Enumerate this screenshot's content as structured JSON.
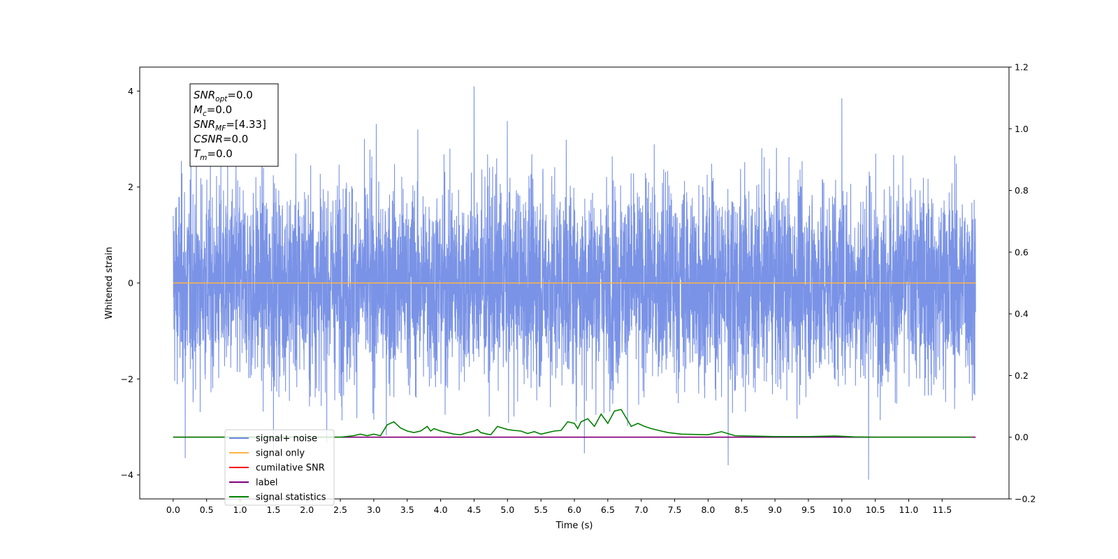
{
  "chart_data": {
    "type": "line",
    "title": "",
    "xlabel": "Time (s)",
    "ylabel": "Whitened strain",
    "xlim": [
      -0.5,
      12.5
    ],
    "ylim": [
      -4.5,
      4.5
    ],
    "y2lim": [
      -0.2,
      1.2
    ],
    "x_ticks": [
      "0.0",
      "0.5",
      "1.0",
      "1.5",
      "2.0",
      "2.5",
      "3.0",
      "3.5",
      "4.0",
      "4.5",
      "5.0",
      "5.5",
      "6.0",
      "6.5",
      "7.0",
      "7.5",
      "8.0",
      "8.5",
      "9.0",
      "9.5",
      "10.0",
      "10.5",
      "11.0",
      "11.5"
    ],
    "y_ticks": [
      "4",
      "2",
      "0",
      "−2",
      "−4"
    ],
    "y2_ticks": [
      "1.2",
      "1.0",
      "0.8",
      "0.6",
      "0.4",
      "0.2",
      "0.0",
      "−0.2"
    ],
    "grid": false,
    "legend_location": "lower-left",
    "stats_box": {
      "lines": [
        {
          "base": "SNR",
          "sub": "opt",
          "value": "=0.0"
        },
        {
          "base": "M",
          "sub": "c",
          "value": "=0.0"
        },
        {
          "base": "SNR",
          "sub": "MF",
          "value": "=[4.33]"
        },
        {
          "base": "CSNR",
          "sub": "",
          "value": "=0.0"
        },
        {
          "base": "T",
          "sub": "m",
          "value": "=0.0"
        }
      ]
    },
    "series": [
      {
        "name": "signal+ noise",
        "color": "#6b87e3",
        "axis": "left",
        "kind": "noise",
        "x_range": [
          0.0,
          12.0
        ],
        "value_range": [
          -4.1,
          4.1
        ],
        "peaks": [
          [
            0.18,
            -3.65
          ],
          [
            4.5,
            4.1
          ],
          [
            10.0,
            3.85
          ],
          [
            10.4,
            -4.1
          ],
          [
            8.3,
            -3.8
          ],
          [
            6.15,
            -3.55
          ],
          [
            1.5,
            -3.6
          ]
        ]
      },
      {
        "name": "signal only",
        "color": "#ffb347",
        "axis": "left",
        "kind": "constant",
        "x": [
          0.0,
          12.0
        ],
        "values": [
          0.0,
          0.0
        ]
      },
      {
        "name": "cumilative SNR",
        "color": "#ff0000",
        "axis": "right",
        "kind": "constant",
        "x": [
          0.0,
          12.0
        ],
        "values": [
          0.0,
          0.0
        ]
      },
      {
        "name": "label",
        "color": "#800080",
        "axis": "right",
        "kind": "constant",
        "x": [
          0.0,
          12.0
        ],
        "values": [
          0.0,
          0.0
        ]
      },
      {
        "name": "signal statistics",
        "color": "#008000",
        "axis": "right",
        "kind": "line",
        "x": [
          0.0,
          0.5,
          1.0,
          1.5,
          2.0,
          2.5,
          2.7,
          2.8,
          2.9,
          3.0,
          3.1,
          3.2,
          3.3,
          3.4,
          3.5,
          3.6,
          3.7,
          3.8,
          3.85,
          3.9,
          4.0,
          4.1,
          4.2,
          4.3,
          4.4,
          4.5,
          4.55,
          4.6,
          4.7,
          4.75,
          4.85,
          5.0,
          5.1,
          5.2,
          5.3,
          5.4,
          5.5,
          5.6,
          5.7,
          5.8,
          5.9,
          6.0,
          6.05,
          6.1,
          6.2,
          6.3,
          6.4,
          6.5,
          6.55,
          6.6,
          6.7,
          6.85,
          6.95,
          7.05,
          7.15,
          7.3,
          7.4,
          7.6,
          8.0,
          8.2,
          8.4,
          9.0,
          9.5,
          9.9,
          10.2,
          10.5,
          11.0,
          11.5,
          11.95
        ],
        "values": [
          0.0,
          0.0,
          0.0,
          0.0,
          0.0,
          0.0,
          0.005,
          0.01,
          0.005,
          0.01,
          0.005,
          0.04,
          0.05,
          0.03,
          0.02,
          0.015,
          0.02,
          0.035,
          0.02,
          0.028,
          0.02,
          0.015,
          0.01,
          0.008,
          0.015,
          0.02,
          0.025,
          0.015,
          0.01,
          0.008,
          0.035,
          0.025,
          0.022,
          0.02,
          0.012,
          0.018,
          0.01,
          0.015,
          0.02,
          0.022,
          0.05,
          0.045,
          0.028,
          0.05,
          0.06,
          0.035,
          0.075,
          0.045,
          0.065,
          0.085,
          0.09,
          0.035,
          0.045,
          0.035,
          0.028,
          0.02,
          0.015,
          0.01,
          0.008,
          0.018,
          0.005,
          0.002,
          0.002,
          0.004,
          0.001,
          0.0,
          0.0,
          0.0,
          0.0
        ]
      }
    ]
  }
}
